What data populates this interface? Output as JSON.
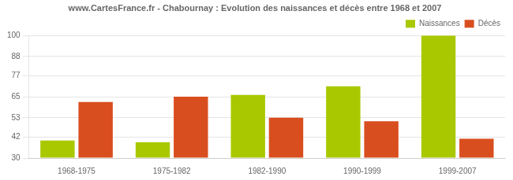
{
  "chart_data": {
    "type": "bar",
    "title": "www.CartesFrance.fr - Chabournay : Evolution des naissances et décès entre 1968 et 2007",
    "categories": [
      "1968-1975",
      "1975-1982",
      "1982-1990",
      "1990-1999",
      "1999-2007"
    ],
    "series": [
      {
        "name": "Naissances",
        "color": "#aac800",
        "values": [
          40,
          39,
          66,
          71,
          100
        ]
      },
      {
        "name": "Décès",
        "color": "#d94e1e",
        "values": [
          62,
          65,
          53,
          51,
          41
        ]
      }
    ],
    "ylim": [
      30,
      100
    ],
    "yticks": [
      30,
      42,
      53,
      65,
      77,
      88,
      100
    ],
    "grid": true,
    "legend": "upper right"
  }
}
